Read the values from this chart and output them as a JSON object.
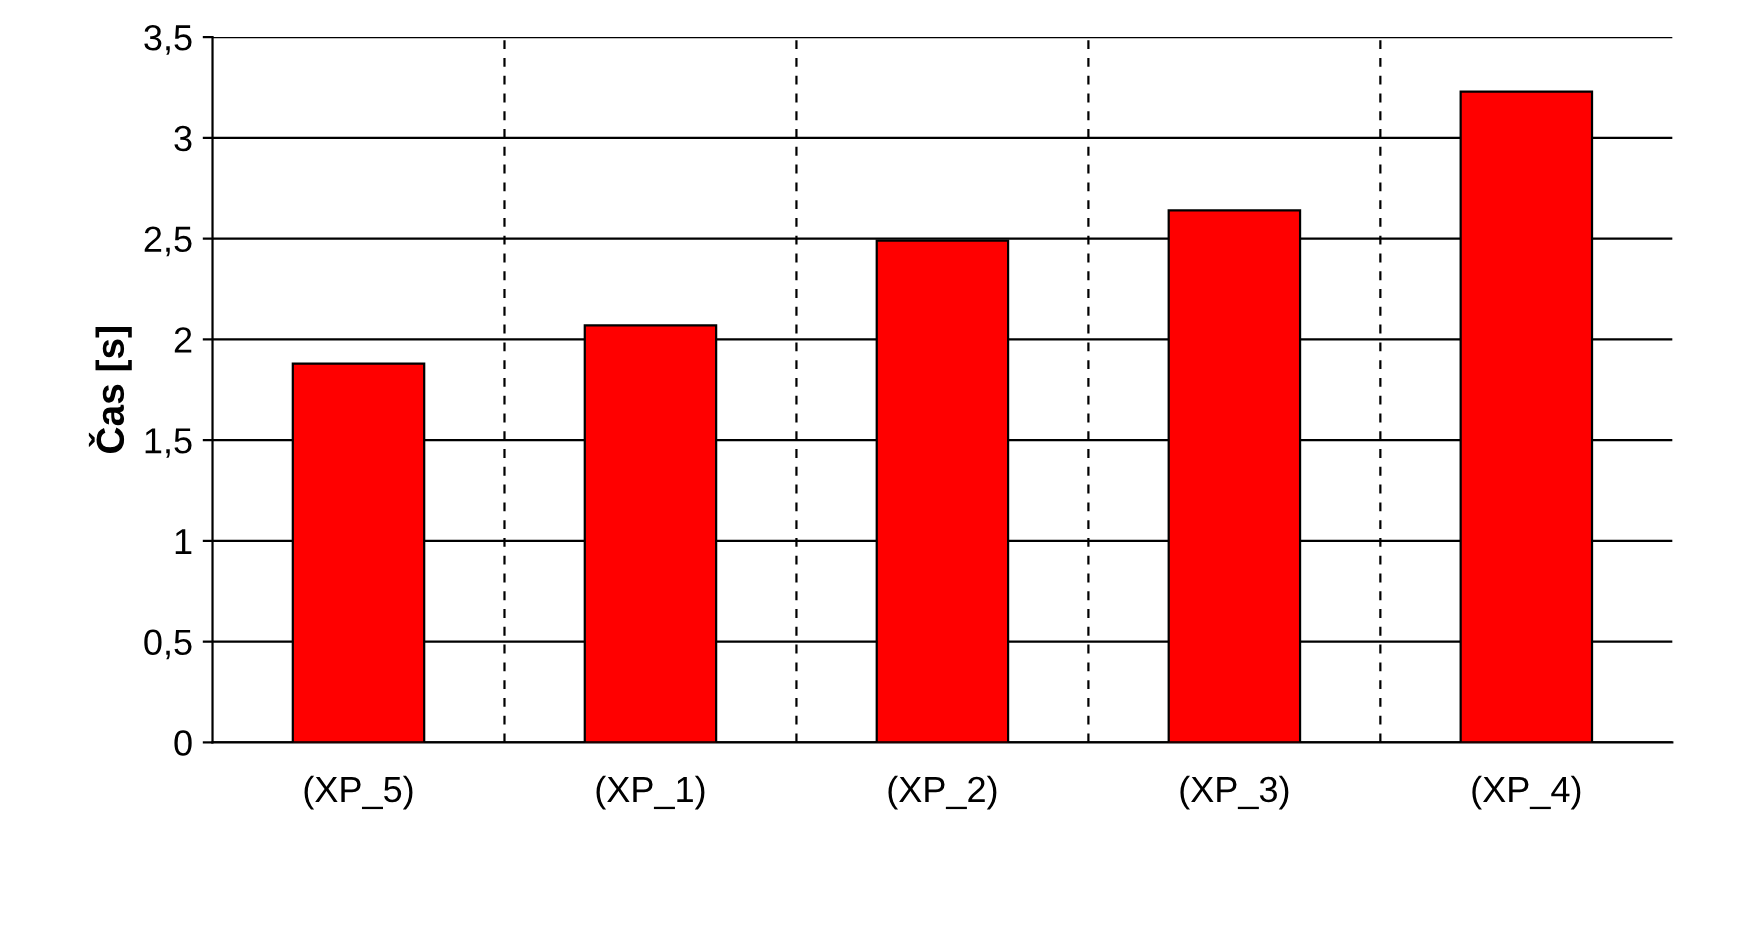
{
  "chart_data": {
    "type": "bar",
    "ylabel": "Čas [s]",
    "categories": [
      "(XP_5)",
      "(XP_1)",
      "(XP_2)",
      "(XP_3)",
      "(XP_4)"
    ],
    "values": [
      1.88,
      2.07,
      2.49,
      2.64,
      3.23
    ],
    "color": "#ff0000",
    "ylim": [
      0,
      3.5
    ],
    "yticks": [
      0,
      {
        "value": 0.5,
        "label": "0,5"
      },
      1,
      {
        "value": 1.5,
        "label": "1,5"
      },
      2,
      {
        "value": 2.5,
        "label": "2,5"
      },
      3,
      {
        "value": 3.5,
        "label": "3,5"
      }
    ],
    "grid": true
  }
}
